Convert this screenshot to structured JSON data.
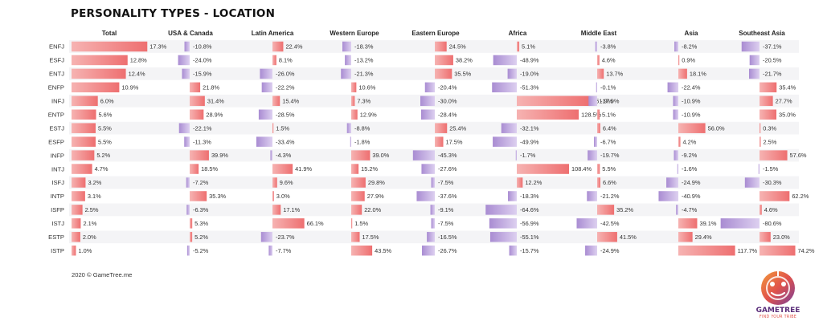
{
  "title": "PERSONALITY TYPES - LOCATION",
  "footer": "2020 © GameTree.me",
  "logo": {
    "word": "GAMETREE",
    "tagline": "FIND YOUR TRIBE"
  },
  "colors": {
    "positive": "#ee6f70",
    "positive_light": "#f6b3b2",
    "negative": "#a98cd2",
    "negative_light": "#ddd0f0",
    "row_stripe": "#f2f2f4"
  },
  "chart_data": {
    "type": "table",
    "columns": [
      "Total",
      "USA & Canada",
      "Latin America",
      "Western Europe",
      "Eastern Europe",
      "Africa",
      "Middle East",
      "Asia",
      "Southeast Asia"
    ],
    "rows": [
      "ENFJ",
      "ESFJ",
      "ENTJ",
      "ENFP",
      "INFJ",
      "ENTP",
      "ESTJ",
      "ESFP",
      "INFP",
      "INTJ",
      "ISFJ",
      "INTP",
      "ISFP",
      "ISTJ",
      "ESTP",
      "ISTP"
    ],
    "total": [
      17.3,
      12.8,
      12.4,
      10.9,
      6.0,
      5.6,
      5.5,
      5.5,
      5.2,
      4.7,
      3.2,
      3.1,
      2.5,
      2.1,
      2.0,
      1.0
    ],
    "total_labels": [
      "17.3%",
      "12.8%",
      "12.4%",
      "10.9%",
      "6.0%",
      "5.6%",
      "5.5%",
      "5.5%",
      "5.2%",
      "4.7%",
      "3.2%",
      "3.1%",
      "2.5%",
      "2.1%",
      "2.0%",
      "1.0%"
    ],
    "regions": [
      {
        "name": "USA & Canada",
        "values": [
          -10.8,
          -24.0,
          -15.9,
          21.8,
          31.4,
          28.9,
          -22.1,
          -11.3,
          39.9,
          18.5,
          -7.2,
          35.3,
          -6.3,
          5.3,
          5.2,
          -5.2
        ],
        "labels": [
          "-10.8%",
          "-24.0%",
          "-15.9%",
          "21.8%",
          "31.4%",
          "28.9%",
          "-22.1%",
          "-11.3%",
          "39.9%",
          "18.5%",
          "-7.2%",
          "35.3%",
          "-6.3%",
          "5.3%",
          "5.2%",
          "-5.2%"
        ]
      },
      {
        "name": "Latin America",
        "values": [
          22.4,
          8.1,
          -26.0,
          -22.2,
          15.4,
          -28.5,
          1.5,
          -33.4,
          -4.3,
          41.9,
          9.6,
          3.0,
          17.1,
          66.1,
          -23.7,
          -7.7
        ],
        "labels": [
          "22.4%",
          "8.1%",
          "-26.0%",
          "-22.2%",
          "15.4%",
          "-28.5%",
          "1.5%",
          "-33.4%",
          "-4.3%",
          "41.9%",
          "9.6%",
          "3.0%",
          "17.1%",
          "66.1%",
          "-23.7%",
          "-7.7%"
        ]
      },
      {
        "name": "Western Europe",
        "values": [
          -18.3,
          -13.2,
          -21.3,
          10.6,
          7.3,
          12.9,
          -8.8,
          -1.8,
          39.0,
          15.2,
          29.8,
          27.9,
          22.0,
          1.5,
          17.5,
          43.5
        ],
        "labels": [
          "-18.3%",
          "-13.2%",
          "-21.3%",
          "10.6%",
          "7.3%",
          "12.9%",
          "-8.8%",
          "-1.8%",
          "39.0%",
          "15.2%",
          "29.8%",
          "27.9%",
          "22.0%",
          "1.5%",
          "17.5%",
          "43.5%"
        ]
      },
      {
        "name": "Eastern Europe",
        "values": [
          24.5,
          38.2,
          35.5,
          -20.4,
          -30.0,
          -28.4,
          25.4,
          17.5,
          -45.3,
          -27.6,
          -7.5,
          -37.6,
          -9.1,
          -7.5,
          -16.5,
          -26.7
        ],
        "labels": [
          "24.5%",
          "38.2%",
          "35.5%",
          "-20.4%",
          "-30.0%",
          "-28.4%",
          "25.4%",
          "17.5%",
          "-45.3%",
          "-27.6%",
          "-7.5%",
          "-37.6%",
          "-9.1%",
          "-7.5%",
          "-16.5%",
          "-26.7%"
        ]
      },
      {
        "name": "Africa",
        "values": [
          5.1,
          -48.9,
          -19.0,
          -51.3,
          151.9,
          128.5,
          -32.1,
          -49.9,
          -1.7,
          108.4,
          12.2,
          -18.3,
          -64.6,
          -56.9,
          -55.1,
          -15.7
        ],
        "labels": [
          "5.1%",
          "-48.9%",
          "-19.0%",
          "-51.3%",
          "151.9%",
          "128.5%",
          "-32.1%",
          "-49.9%",
          "-1.7%",
          "108.4%",
          "12.2%",
          "-18.3%",
          "-64.6%",
          "-56.9%",
          "-55.1%",
          "-15.7%"
        ]
      },
      {
        "name": "Middle East",
        "values": [
          -3.8,
          4.6,
          13.7,
          -0.1,
          -17.9,
          5.1,
          6.4,
          -6.7,
          -19.7,
          5.5,
          6.6,
          -21.2,
          35.2,
          -42.5,
          41.5,
          -24.9
        ],
        "labels": [
          "-3.8%",
          "4.6%",
          "13.7%",
          "-0.1%",
          "-17.9%",
          "5.1%",
          "6.4%",
          "-6.7%",
          "-19.7%",
          "5.5%",
          "6.6%",
          "-21.2%",
          "35.2%",
          "-42.5%",
          "41.5%",
          "-24.9%"
        ]
      },
      {
        "name": "Asia",
        "values": [
          -8.2,
          0.9,
          18.1,
          -22.4,
          -10.9,
          -10.9,
          56.0,
          4.2,
          -9.2,
          -1.6,
          -24.9,
          -40.9,
          -4.7,
          39.1,
          29.4,
          117.7
        ],
        "labels": [
          "-8.2%",
          "0.9%",
          "18.1%",
          "-22.4%",
          "-10.9%",
          "-10.9%",
          "56.0%",
          "4.2%",
          "-9.2%",
          "-1.6%",
          "-24.9%",
          "-40.9%",
          "-4.7%",
          "39.1%",
          "29.4%",
          "117.7%"
        ]
      },
      {
        "name": "Southeast Asia",
        "values": [
          -37.1,
          -20.5,
          -21.7,
          35.4,
          27.7,
          35.0,
          0.3,
          2.5,
          57.6,
          -1.5,
          -30.3,
          62.2,
          4.6,
          -80.6,
          23.0,
          74.2
        ],
        "labels": [
          "-37.1%",
          "-20.5%",
          "-21.7%",
          "35.4%",
          "27.7%",
          "35.0%",
          "0.3%",
          "2.5%",
          "57.6%",
          "-1.5%",
          "-30.3%",
          "62.2%",
          "4.6%",
          "-80.6%",
          "23.0%",
          "74.2%"
        ]
      }
    ]
  }
}
